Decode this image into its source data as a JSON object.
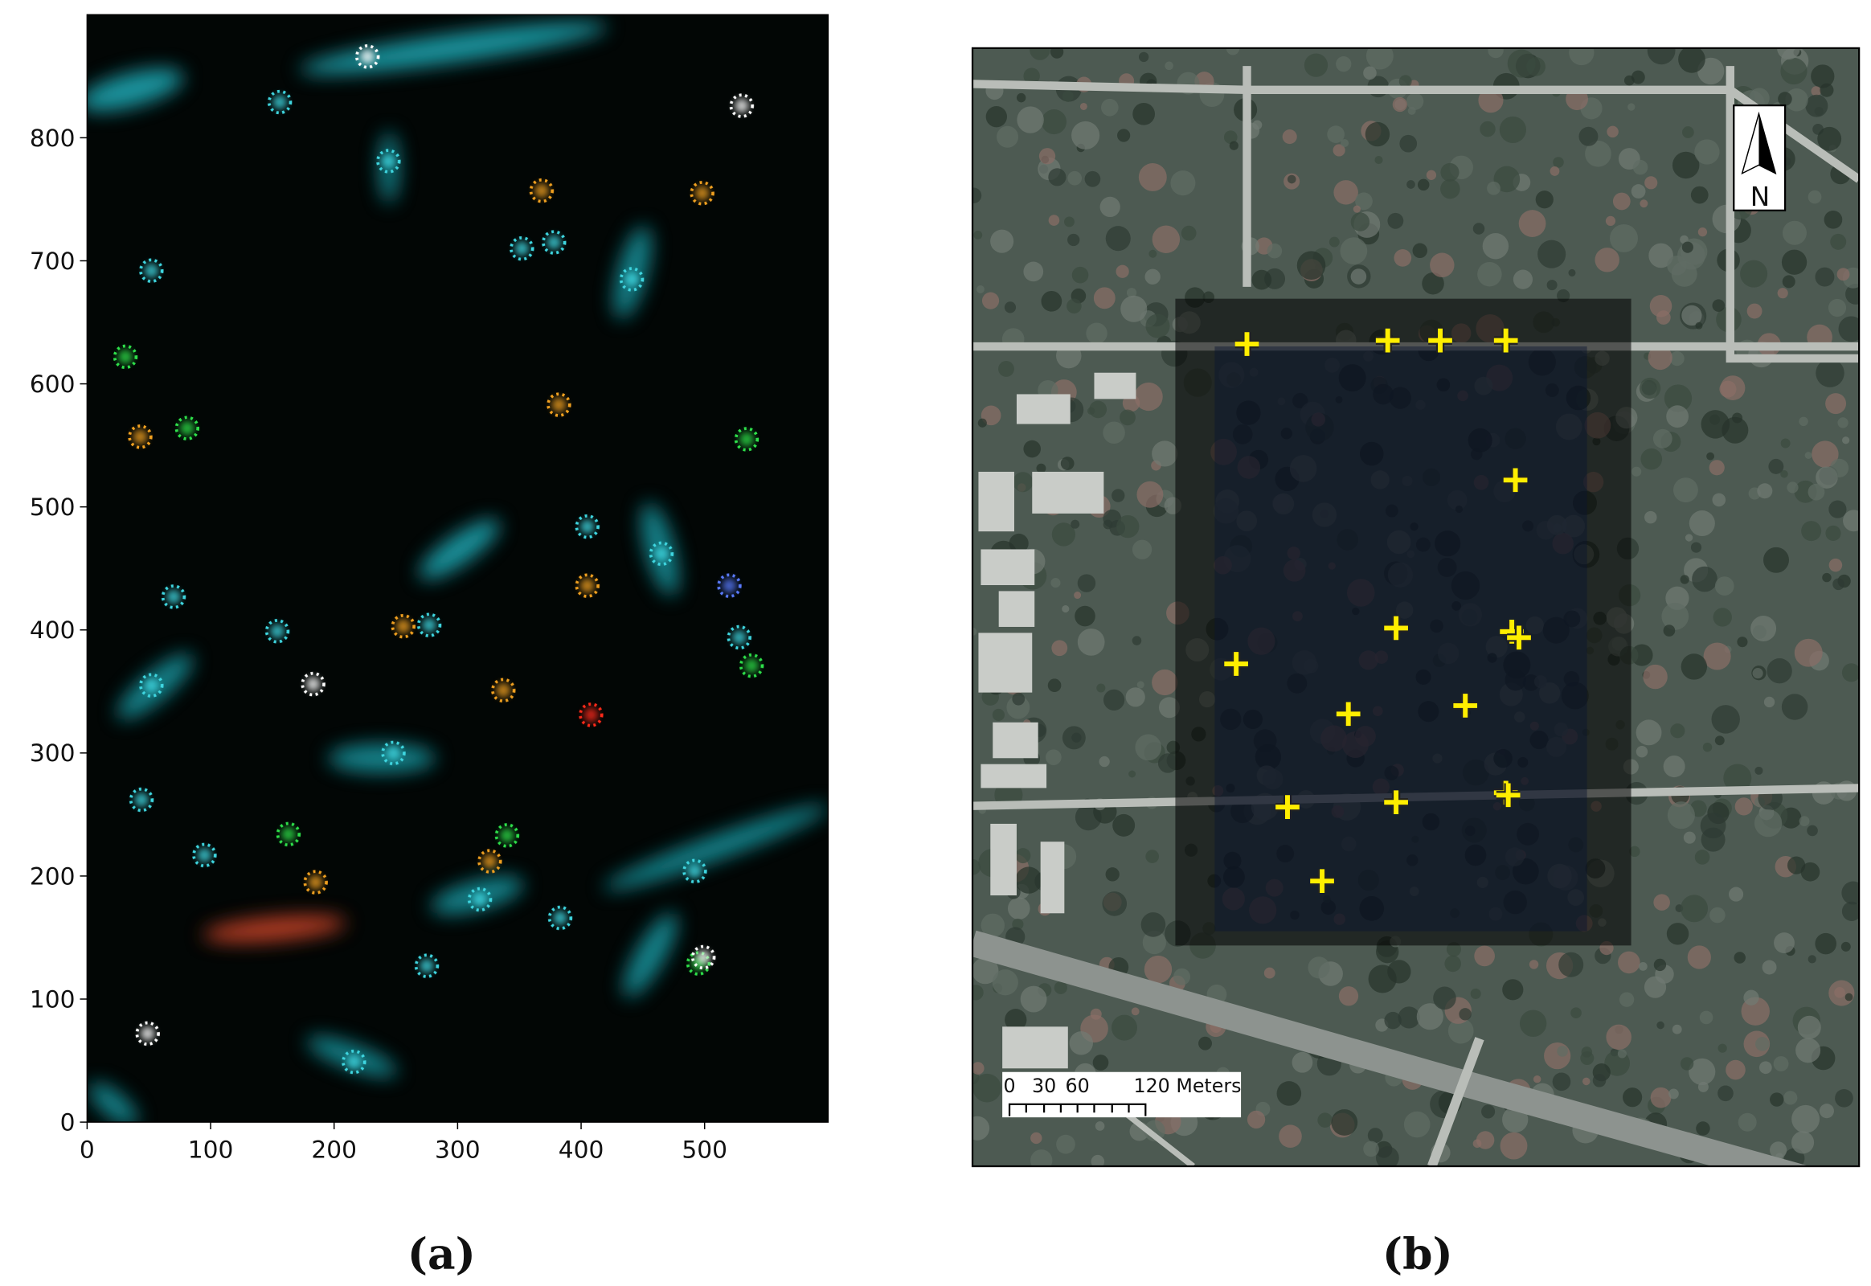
{
  "chart_data": [
    {
      "type": "scatter",
      "caption": "(a)",
      "xlim": [
        0,
        600
      ],
      "ylim": [
        0,
        900
      ],
      "xticks": [
        0,
        100,
        200,
        300,
        400,
        500
      ],
      "yticks": [
        0,
        100,
        200,
        300,
        400,
        500,
        600,
        700,
        800
      ],
      "series": [
        {
          "color": "#3fd6e0",
          "x": [
            156,
            52,
            352,
            378,
            441,
            244,
            405,
            465,
            70,
            277,
            528,
            52,
            44,
            95,
            248,
            318,
            492,
            383,
            275,
            216,
            154
          ],
          "values": [
            829,
            692,
            710,
            715,
            685,
            781,
            484,
            462,
            427,
            404,
            394,
            355,
            262,
            217,
            300,
            181,
            204,
            166,
            127,
            49,
            399
          ]
        },
        {
          "color": "#f0a020",
          "x": [
            498,
            368,
            382,
            43,
            256,
            405,
            337,
            326,
            185
          ],
          "values": [
            755,
            757,
            583,
            557,
            403,
            436,
            351,
            212,
            195
          ]
        },
        {
          "color": "#ff2a1a",
          "x": [
            408
          ],
          "values": [
            331
          ]
        },
        {
          "color": "#2ee04a",
          "x": [
            81,
            534,
            538,
            163,
            340,
            495,
            31
          ],
          "values": [
            564,
            555,
            371,
            234,
            233,
            129,
            622
          ]
        },
        {
          "color": "#ffffff",
          "x": [
            183,
            530,
            227,
            499,
            49
          ],
          "values": [
            356,
            826,
            866,
            134,
            72
          ]
        },
        {
          "color": "#5a7bff",
          "x": [
            520
          ],
          "values": [
            436
          ]
        }
      ]
    },
    {
      "type": "map",
      "caption": "(b)",
      "north_label": "N",
      "scale_bar": {
        "labels": [
          "0",
          "30",
          "60",
          "120 Meters"
        ]
      }
    }
  ]
}
